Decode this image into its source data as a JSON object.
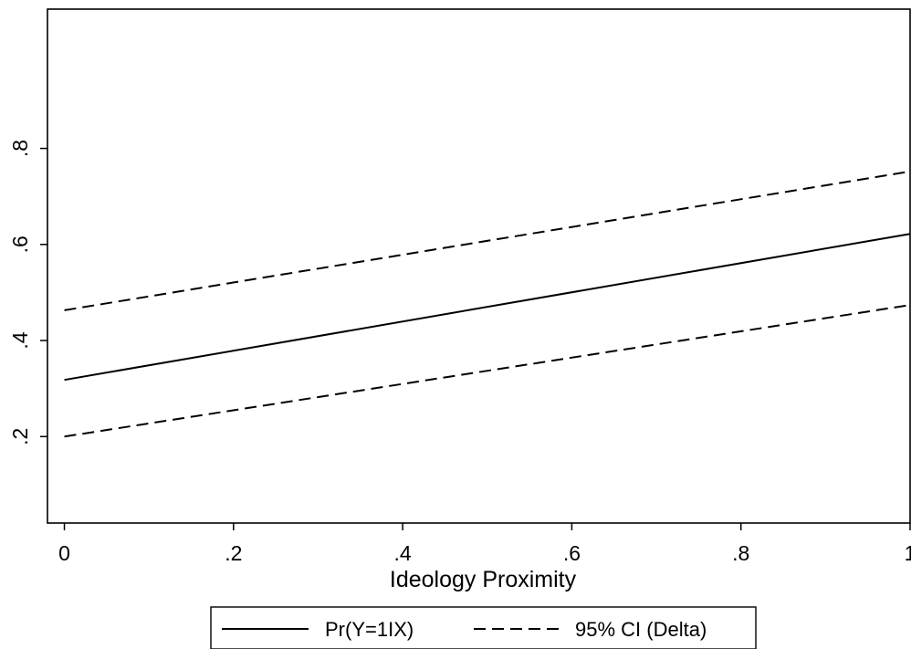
{
  "chart_data": {
    "type": "line",
    "title": "",
    "xlabel": "Ideology Proximity",
    "ylabel": "",
    "xlim": [
      -0.02,
      1
    ],
    "ylim": [
      0.02,
      1.09
    ],
    "xticks": [
      0,
      0.2,
      0.4,
      0.6,
      0.8,
      1
    ],
    "xtick_labels": [
      "0",
      ".2",
      ".4",
      ".6",
      ".8",
      "1"
    ],
    "yticks": [
      0.2,
      0.4,
      0.6,
      0.8
    ],
    "ytick_labels": [
      ".2",
      ".4",
      ".6",
      ".8"
    ],
    "grid": false,
    "legend_position": "bottom",
    "x": [
      0,
      1
    ],
    "series": [
      {
        "name": "Pr(Y=1IX)",
        "values": [
          0.318,
          0.622
        ],
        "style": "solid"
      },
      {
        "name": "95% CI (Delta)",
        "values": [
          0.463,
          0.752
        ],
        "style": "dashed"
      },
      {
        "name": "",
        "values": [
          0.2,
          0.474
        ],
        "style": "dashed"
      }
    ]
  }
}
